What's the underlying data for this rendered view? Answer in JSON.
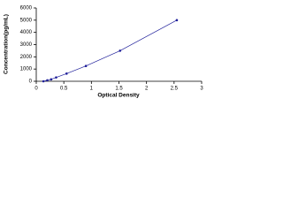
{
  "chart_data": {
    "type": "scatter",
    "x_label": "Optical Density",
    "y_label": "Concentration(pg/mL)",
    "series": [
      {
        "color": "#1f1f9a",
        "x": [
          0.13,
          0.2,
          0.27,
          0.36,
          0.55,
          0.9,
          1.52,
          2.55
        ],
        "values": [
          0,
          78,
          156,
          312,
          625,
          1250,
          2500,
          5000
        ]
      }
    ],
    "line": true,
    "xlim": [
      0,
      3
    ],
    "xticks": [
      0,
      0.5,
      1,
      1.5,
      2,
      2.5,
      3
    ],
    "ylim": [
      0,
      6000
    ],
    "yticks": [
      0,
      1000,
      2000,
      3000,
      4000,
      5000,
      6000
    ]
  }
}
